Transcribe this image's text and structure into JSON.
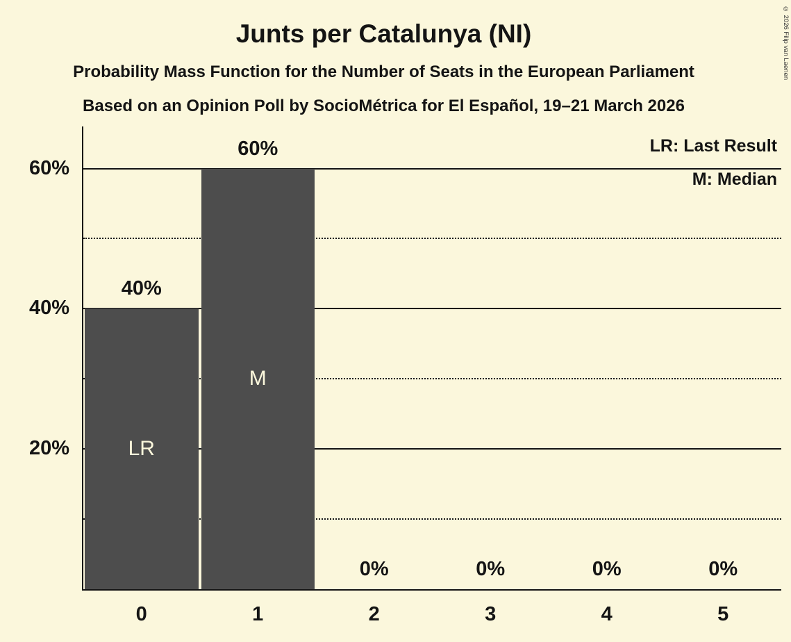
{
  "title": "Junts per Catalunya (NI)",
  "subtitle1": "Probability Mass Function for the Number of Seats in the European Parliament",
  "subtitle2": "Based on an Opinion Poll by SocioMétrica for El Español, 19–21 March 2026",
  "copyright": "© 2026 Filip van Laenen",
  "legend": {
    "lr": "LR: Last Result",
    "m": "M: Median"
  },
  "colors": {
    "background": "#FBF7DC",
    "bar": "#4D4D4D",
    "text": "#141414",
    "bar_label_text": "#FBF7DC"
  },
  "chart_data": {
    "type": "bar",
    "categories": [
      "0",
      "1",
      "2",
      "3",
      "4",
      "5"
    ],
    "values": [
      40,
      60,
      0,
      0,
      0,
      0
    ],
    "value_labels": [
      "40%",
      "60%",
      "0%",
      "0%",
      "0%",
      "0%"
    ],
    "bar_annotations": [
      "LR",
      "M",
      "",
      "",
      "",
      ""
    ],
    "title": "Junts per Catalunya (NI)",
    "xlabel": "",
    "ylabel": "",
    "ylim": [
      0,
      66
    ],
    "yticks": [
      {
        "value": 20,
        "label": "20%"
      },
      {
        "value": 40,
        "label": "40%"
      },
      {
        "value": 60,
        "label": "60%"
      }
    ],
    "solid_gridlines": [
      20,
      40,
      60
    ],
    "dotted_gridlines": [
      10,
      30,
      50
    ],
    "grid": true,
    "legend_position": "top-right"
  }
}
